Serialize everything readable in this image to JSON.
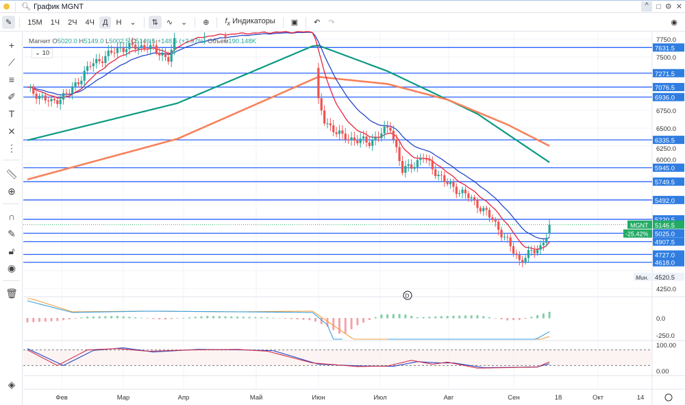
{
  "window": {
    "title": "График MGNT"
  },
  "toolbar": {
    "timeframes": [
      "15M",
      "1Ч",
      "2Ч",
      "4Ч",
      "Д",
      "Н"
    ],
    "active": "Д",
    "indicators_label": "Индикаторы"
  },
  "legend": {
    "name": "Магнит",
    "o_label": "O",
    "o": "5020.0",
    "h_label": "H",
    "h": "5149.0",
    "l_label": "L",
    "l": "5002.5",
    "c_label": "C",
    "c": "5146.5",
    "change": "+148.5 (+2.97%)",
    "vol_label": "Объем",
    "vol": "190.148K",
    "collapse": "10"
  },
  "colors": {
    "up": "#26a69a",
    "down": "#ef5350",
    "level": "#2962ff",
    "ma_long": "#089981",
    "ma_mid": "#f7815a",
    "ema_fast": "#e91e3c",
    "ema_slow": "#2446c8",
    "badge": "#2f7de1",
    "last": "#22ab64"
  },
  "chart_data": {
    "type": "candlestick",
    "symbol": "MGNT",
    "ylim": [
      4100,
      7800
    ],
    "y_ticks": [
      "7750.0",
      "7500.0",
      "6750.0",
      "6500.0",
      "6250.0",
      "6000.0",
      "4250.0"
    ],
    "x_ticks": [
      "Фев",
      "Мар",
      "Апр",
      "Май",
      "Июн",
      "Июл",
      "Авг",
      "Сен",
      "18",
      "Окт",
      "14"
    ],
    "levels": [
      7631.5,
      7271.5,
      7076.5,
      6936.0,
      6335.5,
      5945.0,
      5749.5,
      5492.0,
      5220.5,
      5025.0,
      4907.5,
      4727.0,
      4618.0
    ],
    "last_price": {
      "symbol": "MGNT",
      "value": "5146.5",
      "change": "-25.42%"
    },
    "min_label": {
      "label": "Мин.",
      "value": "4520.5"
    },
    "candle_count": 175,
    "close_keypoints": [
      [
        0,
        7048
      ],
      [
        8,
        6856
      ],
      [
        14,
        7000
      ],
      [
        21,
        7385
      ],
      [
        31,
        7625
      ],
      [
        40,
        7650
      ],
      [
        47,
        7480
      ],
      [
        50,
        7800
      ],
      [
        60,
        7820
      ],
      [
        82,
        7850
      ],
      [
        95,
        7850
      ],
      [
        97,
        6856
      ],
      [
        99,
        6600
      ],
      [
        105,
        6375
      ],
      [
        114,
        6300
      ],
      [
        121,
        6520
      ],
      [
        125,
        5894
      ],
      [
        132,
        6087
      ],
      [
        139,
        5750
      ],
      [
        148,
        5510
      ],
      [
        155,
        5221
      ],
      [
        161,
        4837
      ],
      [
        164,
        4644
      ],
      [
        171,
        4837
      ],
      [
        173,
        4998
      ],
      [
        174,
        5146.5
      ]
    ],
    "ma_long": [
      [
        0,
        6330
      ],
      [
        50,
        6850
      ],
      [
        95,
        7650
      ],
      [
        97,
        7660
      ],
      [
        120,
        7300
      ],
      [
        150,
        6700
      ],
      [
        174,
        6020
      ]
    ],
    "ma_mid": [
      [
        0,
        5780
      ],
      [
        50,
        6350
      ],
      [
        97,
        7220
      ],
      [
        120,
        7120
      ],
      [
        140,
        6900
      ],
      [
        160,
        6550
      ],
      [
        174,
        6250
      ]
    ],
    "macd": {
      "yticks": [
        "0.0",
        "-250.0"
      ],
      "line": [
        [
          0,
          250
        ],
        [
          15,
          80
        ],
        [
          40,
          100
        ],
        [
          70,
          90
        ],
        [
          95,
          80
        ],
        [
          100,
          -100
        ],
        [
          105,
          -650
        ],
        [
          110,
          -700
        ],
        [
          120,
          -400
        ],
        [
          130,
          -350
        ],
        [
          150,
          -320
        ],
        [
          165,
          -420
        ],
        [
          174,
          -200
        ]
      ],
      "signal": [
        [
          0,
          300
        ],
        [
          15,
          90
        ],
        [
          40,
          100
        ],
        [
          70,
          90
        ],
        [
          95,
          100
        ],
        [
          105,
          -200
        ],
        [
          115,
          -500
        ],
        [
          125,
          -420
        ],
        [
          150,
          -330
        ],
        [
          165,
          -400
        ],
        [
          174,
          -270
        ]
      ],
      "hist": [
        [
          0,
          -60
        ],
        [
          10,
          -40
        ],
        [
          20,
          20
        ],
        [
          30,
          30
        ],
        [
          45,
          -20
        ],
        [
          60,
          30
        ],
        [
          80,
          10
        ],
        [
          95,
          -30
        ],
        [
          100,
          -120
        ],
        [
          105,
          -250
        ],
        [
          110,
          -100
        ],
        [
          118,
          50
        ],
        [
          125,
          60
        ],
        [
          130,
          10
        ],
        [
          140,
          30
        ],
        [
          150,
          40
        ],
        [
          160,
          -30
        ],
        [
          165,
          -20
        ],
        [
          174,
          90
        ]
      ]
    },
    "stoch": {
      "yticks": [
        "100.00",
        "0.00"
      ],
      "k": [
        [
          0,
          80
        ],
        [
          10,
          20
        ],
        [
          20,
          80
        ],
        [
          30,
          85
        ],
        [
          40,
          75
        ],
        [
          55,
          80
        ],
        [
          70,
          82
        ],
        [
          80,
          75
        ],
        [
          95,
          30
        ],
        [
          110,
          16
        ],
        [
          120,
          18
        ],
        [
          128,
          40
        ],
        [
          135,
          25
        ],
        [
          140,
          33
        ],
        [
          150,
          10
        ],
        [
          160,
          12
        ],
        [
          170,
          14
        ],
        [
          174,
          34
        ]
      ],
      "d": [
        [
          0,
          85
        ],
        [
          12,
          20
        ],
        [
          22,
          78
        ],
        [
          32,
          88
        ],
        [
          42,
          72
        ],
        [
          57,
          82
        ],
        [
          72,
          80
        ],
        [
          82,
          77
        ],
        [
          97,
          25
        ],
        [
          112,
          18
        ],
        [
          122,
          17
        ],
        [
          130,
          35
        ],
        [
          137,
          30
        ],
        [
          142,
          30
        ],
        [
          152,
          12
        ],
        [
          162,
          13
        ],
        [
          170,
          15
        ],
        [
          174,
          27
        ]
      ]
    }
  }
}
